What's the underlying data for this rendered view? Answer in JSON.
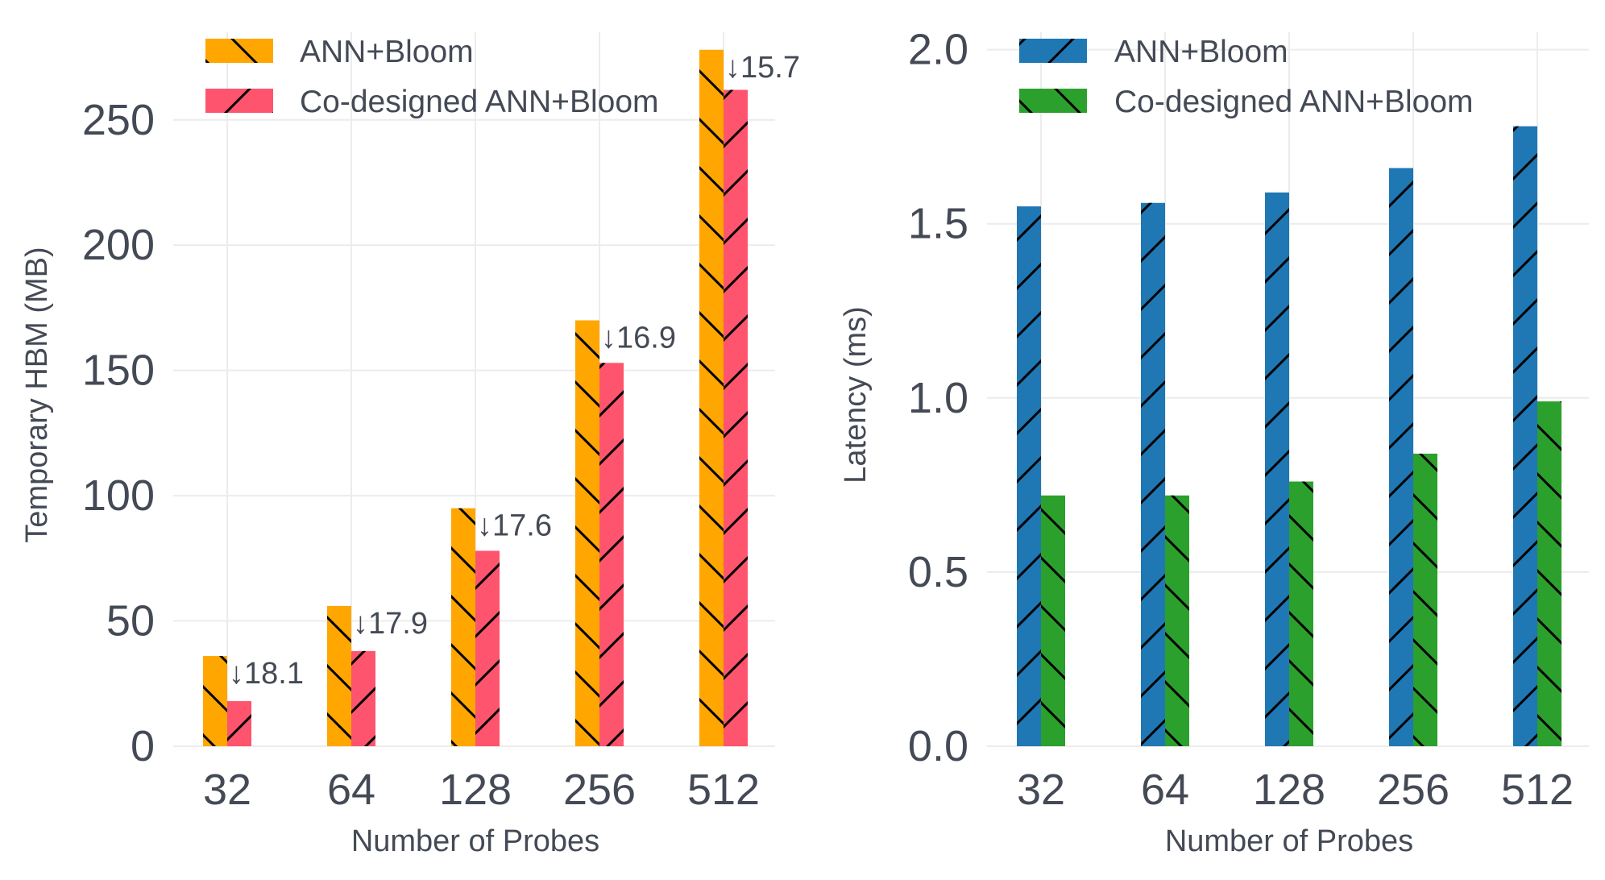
{
  "chart_data": [
    {
      "type": "bar",
      "categories": [
        "32",
        "64",
        "128",
        "256",
        "512"
      ],
      "xlabel": "Number of Probes",
      "ylabel": "Temporary HBM (MB)",
      "ylim": [
        0,
        285
      ],
      "yticks": [
        "0",
        "50",
        "100",
        "150",
        "200",
        "250"
      ],
      "grid": true,
      "legend_position": "top-left",
      "series": [
        {
          "name": "ANN+Bloom",
          "color": "#ffa600",
          "hatch": "backslash",
          "values": [
            36,
            56,
            95,
            170,
            278
          ]
        },
        {
          "name": "Co-designed ANN+Bloom",
          "color": "#ff546d",
          "hatch": "slash",
          "values": [
            18,
            38,
            78,
            153,
            262
          ]
        }
      ],
      "annotations": [
        "↓18.1",
        "↓17.9",
        "↓17.6",
        "↓16.9",
        "↓15.7"
      ]
    },
    {
      "type": "bar",
      "categories": [
        "32",
        "64",
        "128",
        "256",
        "512"
      ],
      "xlabel": "Number of Probes",
      "ylabel": "Latency (ms)",
      "ylim": [
        0,
        2.05
      ],
      "yticks": [
        "0.0",
        "0.5",
        "1.0",
        "1.5",
        "2.0"
      ],
      "grid": true,
      "legend_position": "top-left",
      "series": [
        {
          "name": "ANN+Bloom",
          "color": "#1f77b4",
          "hatch": "slash",
          "values": [
            1.55,
            1.56,
            1.59,
            1.66,
            1.78
          ]
        },
        {
          "name": "Co-designed ANN+Bloom",
          "color": "#2ca02c",
          "hatch": "backslash",
          "values": [
            0.72,
            0.72,
            0.76,
            0.84,
            0.99
          ]
        }
      ],
      "annotations": []
    }
  ]
}
